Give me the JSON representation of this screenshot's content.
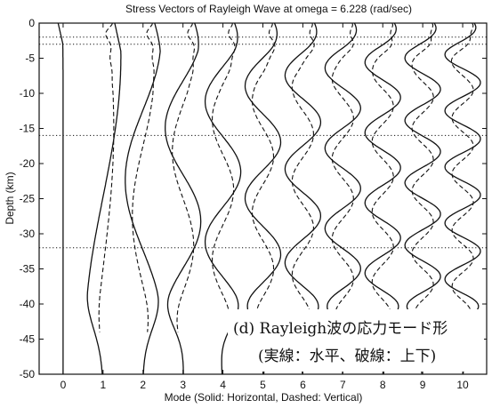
{
  "chart_data": {
    "type": "line",
    "title": "Stress Vectors of Rayleigh Wave at omega = 6.228 (rad/sec)",
    "xlabel": "Mode (Solid: Horizontal, Dashed: Vertical)",
    "ylabel": "Depth (km)",
    "xlim": [
      -0.6,
      10.6
    ],
    "ylim": [
      -50,
      0
    ],
    "x_ticks": [
      "0",
      "1",
      "2",
      "3",
      "4",
      "5",
      "6",
      "7",
      "8",
      "9",
      "10"
    ],
    "y_ticks": [
      "0",
      "-5",
      "-10",
      "-15",
      "-20",
      "-25",
      "-30",
      "-35",
      "-40",
      "-45",
      "-50"
    ],
    "layer_boundaries_km": [
      -2,
      -3,
      -16,
      -32
    ],
    "grid": false,
    "series": [
      {
        "name": "Solid: Horizontal",
        "dash": false
      },
      {
        "name": "Dashed: Vertical",
        "dash": true
      }
    ],
    "annotation": {
      "line1": "(d) Rayleigh波の応力モード形",
      "line2": "(実線：水平、破線：上下)"
    }
  }
}
